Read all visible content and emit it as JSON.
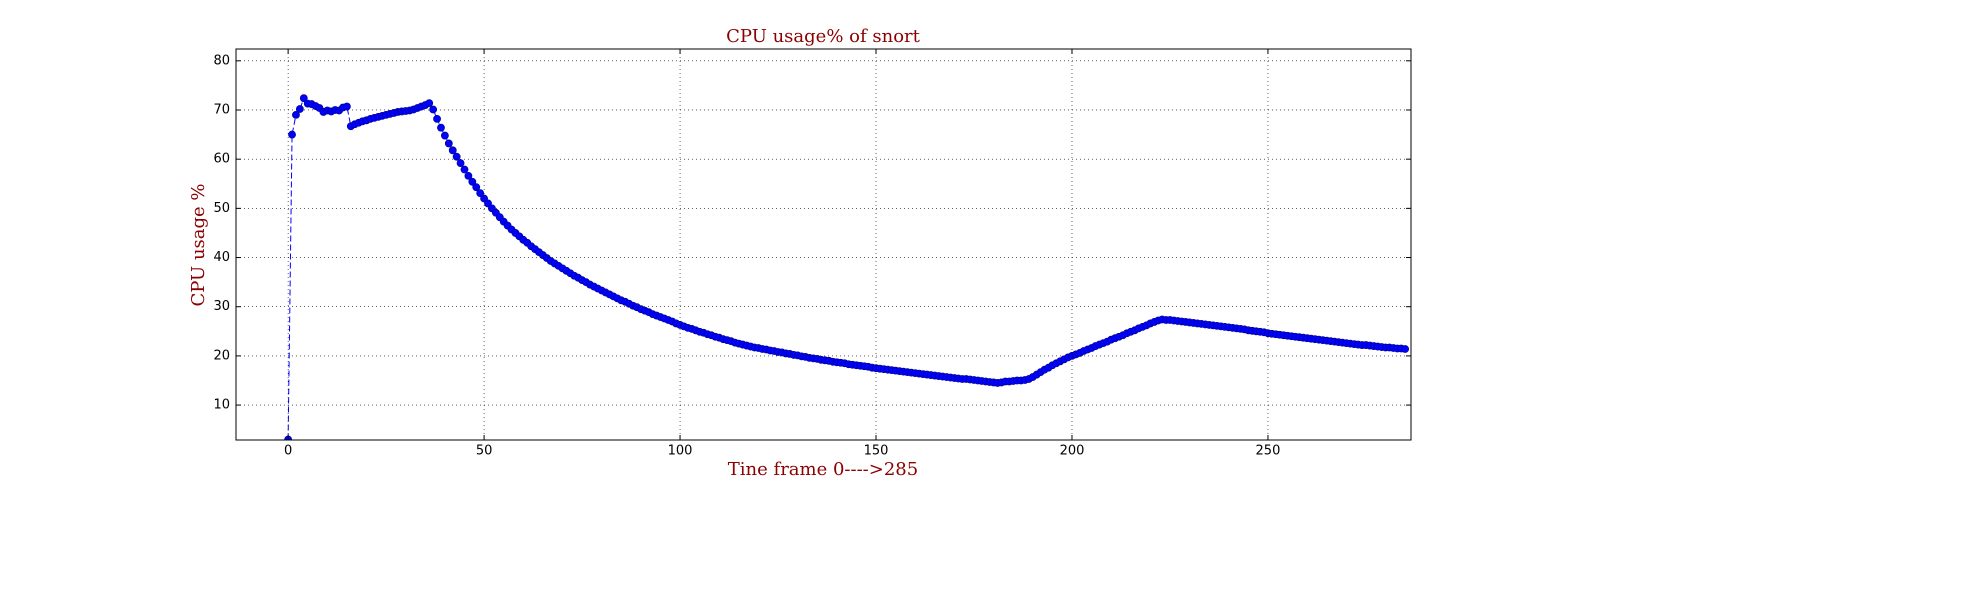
{
  "chart_data": {
    "type": "line",
    "title": "CPU usage% of snort",
    "x_label": "Tine frame 0---->285",
    "y_label": "CPU usage %",
    "xlim": [
      -13.3,
      286.5
    ],
    "ylim": [
      2.9,
      82.4
    ],
    "xticks": [
      0,
      50,
      100,
      150,
      200,
      250
    ],
    "yticks": [
      10,
      20,
      30,
      40,
      50,
      60,
      70,
      80
    ],
    "grid": true,
    "x": [
      0,
      1,
      2,
      3,
      4,
      5,
      6,
      7,
      8,
      9,
      10,
      11,
      12,
      13,
      14,
      15,
      16,
      17,
      18,
      19,
      20,
      21,
      22,
      23,
      24,
      25,
      26,
      27,
      28,
      29,
      30,
      31,
      32,
      33,
      34,
      35,
      36,
      37,
      38,
      39,
      40,
      41,
      42,
      43,
      44,
      45,
      46,
      47,
      48,
      49,
      50,
      51,
      52,
      53,
      54,
      55,
      56,
      57,
      58,
      59,
      60,
      61,
      62,
      63,
      64,
      65,
      66,
      67,
      68,
      69,
      70,
      71,
      72,
      73,
      74,
      75,
      76,
      77,
      78,
      79,
      80,
      81,
      82,
      83,
      84,
      85,
      86,
      87,
      88,
      89,
      90,
      91,
      92,
      93,
      94,
      95,
      96,
      97,
      98,
      99,
      100,
      101,
      102,
      103,
      104,
      105,
      106,
      107,
      108,
      109,
      110,
      111,
      112,
      113,
      114,
      115,
      116,
      117,
      118,
      119,
      120,
      121,
      122,
      123,
      124,
      125,
      126,
      127,
      128,
      129,
      130,
      131,
      132,
      133,
      134,
      135,
      136,
      137,
      138,
      139,
      140,
      141,
      142,
      143,
      144,
      145,
      146,
      147,
      148,
      149,
      150,
      151,
      152,
      153,
      154,
      155,
      156,
      157,
      158,
      159,
      160,
      161,
      162,
      163,
      164,
      165,
      166,
      167,
      168,
      169,
      170,
      171,
      172,
      173,
      174,
      175,
      176,
      177,
      178,
      179,
      180,
      181,
      182,
      183,
      184,
      185,
      186,
      187,
      188,
      189,
      190,
      191,
      192,
      193,
      194,
      195,
      196,
      197,
      198,
      199,
      200,
      201,
      202,
      203,
      204,
      205,
      206,
      207,
      208,
      209,
      210,
      211,
      212,
      213,
      214,
      215,
      216,
      217,
      218,
      219,
      220,
      221,
      222,
      223,
      224,
      225,
      226,
      227,
      228,
      229,
      230,
      231,
      232,
      233,
      234,
      235,
      236,
      237,
      238,
      239,
      240,
      241,
      242,
      243,
      244,
      245,
      246,
      247,
      248,
      249,
      250,
      251,
      252,
      253,
      254,
      255,
      256,
      257,
      258,
      259,
      260,
      261,
      262,
      263,
      264,
      265,
      266,
      267,
      268,
      269,
      270,
      271,
      272,
      273,
      274,
      275,
      276,
      277,
      278,
      279,
      280,
      281,
      282,
      283,
      284,
      285
    ],
    "series": [
      {
        "color": "#0000ff",
        "values": [
          3,
          65,
          69,
          70.2,
          72.4,
          71.3,
          71.2,
          70.8,
          70.4,
          69.6,
          69.9,
          69.7,
          70.0,
          69.9,
          70.5,
          70.7,
          66.7,
          67.1,
          67.4,
          67.7,
          67.9,
          68.2,
          68.4,
          68.6,
          68.8,
          69.0,
          69.2,
          69.4,
          69.6,
          69.7,
          69.8,
          69.9,
          70.1,
          70.4,
          70.7,
          71.0,
          71.4,
          70.1,
          68.2,
          66.4,
          64.8,
          63.2,
          61.8,
          60.5,
          59.2,
          57.9,
          56.6,
          55.4,
          54.3,
          53.1,
          52.0,
          51.0,
          50.0,
          49.1,
          48.2,
          47.3,
          46.5,
          45.7,
          45.0,
          44.3,
          43.6,
          43.0,
          42.3,
          41.7,
          41.1,
          40.5,
          39.9,
          39.3,
          38.8,
          38.3,
          37.8,
          37.3,
          36.8,
          36.3,
          35.9,
          35.4,
          35.0,
          34.5,
          34.1,
          33.7,
          33.3,
          32.9,
          32.5,
          32.1,
          31.7,
          31.3,
          31.0,
          30.6,
          30.2,
          29.9,
          29.5,
          29.2,
          28.9,
          28.5,
          28.2,
          27.9,
          27.6,
          27.3,
          27.0,
          26.6,
          26.3,
          26.0,
          25.7,
          25.5,
          25.2,
          24.9,
          24.7,
          24.4,
          24.2,
          23.9,
          23.7,
          23.4,
          23.2,
          23.0,
          22.7,
          22.5,
          22.3,
          22.1,
          21.9,
          21.7,
          21.6,
          21.4,
          21.3,
          21.1,
          21.0,
          20.8,
          20.7,
          20.5,
          20.4,
          20.2,
          20.1,
          19.9,
          19.8,
          19.6,
          19.5,
          19.4,
          19.2,
          19.1,
          19.0,
          18.8,
          18.7,
          18.6,
          18.5,
          18.3,
          18.2,
          18.1,
          18.0,
          17.9,
          17.8,
          17.6,
          17.5,
          17.4,
          17.3,
          17.2,
          17.1,
          17.0,
          16.9,
          16.8,
          16.7,
          16.6,
          16.5,
          16.4,
          16.3,
          16.2,
          16.1,
          16.0,
          15.9,
          15.8,
          15.7,
          15.6,
          15.5,
          15.4,
          15.3,
          15.3,
          15.2,
          15.1,
          15.0,
          14.9,
          14.8,
          14.7,
          14.6,
          14.5,
          14.6,
          14.8,
          14.8,
          14.9,
          15.0,
          15.0,
          15.1,
          15.3,
          15.7,
          16.2,
          16.7,
          17.2,
          17.6,
          18.1,
          18.5,
          18.9,
          19.3,
          19.7,
          20.0,
          20.3,
          20.6,
          21.0,
          21.3,
          21.6,
          22.0,
          22.3,
          22.6,
          22.9,
          23.3,
          23.6,
          23.9,
          24.2,
          24.6,
          24.9,
          25.2,
          25.6,
          25.9,
          26.2,
          26.6,
          26.9,
          27.2,
          27.4,
          27.3,
          27.3,
          27.2,
          27.1,
          27.0,
          26.9,
          26.8,
          26.7,
          26.6,
          26.5,
          26.4,
          26.3,
          26.2,
          26.1,
          26.0,
          25.9,
          25.8,
          25.7,
          25.6,
          25.5,
          25.4,
          25.2,
          25.1,
          25.0,
          24.9,
          24.8,
          24.6,
          24.5,
          24.4,
          24.3,
          24.2,
          24.1,
          24.0,
          23.9,
          23.8,
          23.7,
          23.6,
          23.5,
          23.4,
          23.3,
          23.2,
          23.1,
          23.0,
          22.9,
          22.8,
          22.7,
          22.6,
          22.5,
          22.4,
          22.3,
          22.2,
          22.2,
          22.1,
          22.0,
          21.9,
          21.8,
          21.7,
          21.7,
          21.6,
          21.5,
          21.5,
          21.4
        ]
      }
    ]
  }
}
